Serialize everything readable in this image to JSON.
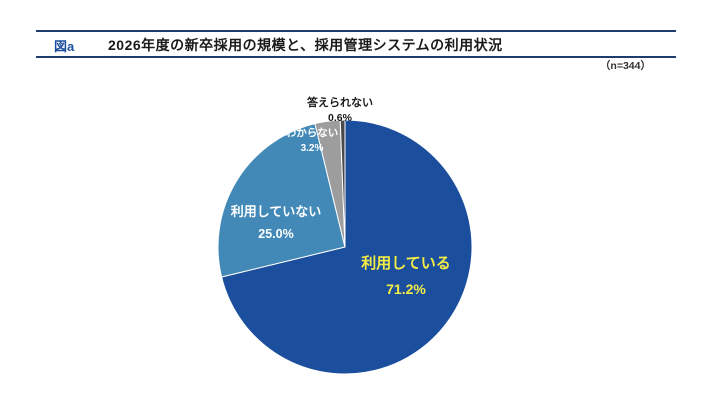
{
  "header": {
    "fig_label": "図a",
    "title": "2026年度の新卒採用の規模と、採用管理システムの利用状況",
    "sample_size": "（n=344）"
  },
  "colors": {
    "header_rule": "#1e3c6e",
    "fig_label_blue": "#1b4f9e",
    "label_yellow": "#f5ec45"
  },
  "chart_data": {
    "type": "pie",
    "title": "2026年度の新卒採用の規模と、採用管理システムの利用状況",
    "sample_size": 344,
    "categories": [
      "利用している",
      "利用していない",
      "わからない",
      "答えられない"
    ],
    "values": [
      71.2,
      25.0,
      3.2,
      0.6
    ],
    "value_labels": [
      "71.2%",
      "25.0%",
      "3.2%",
      "0.6%"
    ],
    "colors": [
      "#1b4f9e",
      "#4289b8",
      "#9d9d9d",
      "#4a4a4a"
    ],
    "label_colors": [
      "#f5ec45",
      "#ffffff",
      "#ffffff",
      "#1a1a1a"
    ],
    "start_angle_deg": 0,
    "direction": "clockwise",
    "legend": "none"
  }
}
